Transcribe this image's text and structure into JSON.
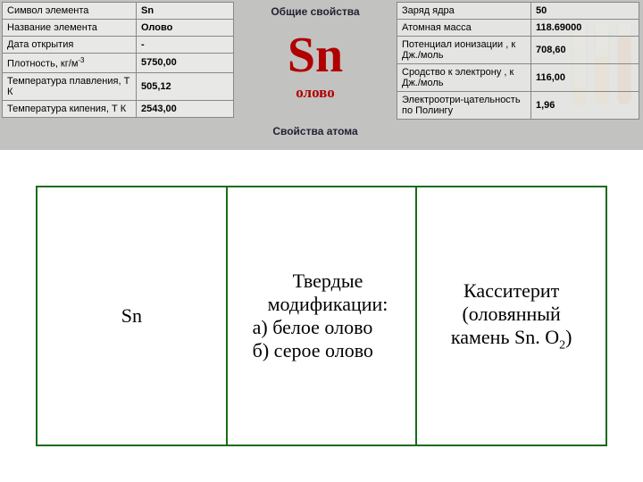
{
  "top": {
    "left_rows": [
      {
        "label": "Символ элемента",
        "value": "Sn"
      },
      {
        "label": "Название элемента",
        "value": "Олово"
      },
      {
        "label": "Дата открытия",
        "value": "-"
      },
      {
        "label": "Плотность, кг/м",
        "label_sup": "-3",
        "value": "5750,00"
      },
      {
        "label": "Температура плавления, Т К",
        "value": "505,12"
      },
      {
        "label": "Температура кипения, Т К",
        "value": "2543,00"
      }
    ],
    "center": {
      "header1": "Общие свойства",
      "symbol": "Sn",
      "name": "олово",
      "header2": "Свойства атома",
      "symbol_color": "#b00000"
    },
    "right_rows": [
      {
        "label": "Заряд ядра",
        "value": "50"
      },
      {
        "label": "Атомная масса",
        "value": "118.69000"
      },
      {
        "label": "Потенциал ионизации , к Дж./моль",
        "value": "708,60"
      },
      {
        "label": "Сродство к электрону , к Дж./моль",
        "value": "116,00"
      },
      {
        "label": "Электроотри-цательность по Полингу",
        "value": "1,96"
      }
    ]
  },
  "bottom": {
    "border_color": "#1a6b1a",
    "cells": [
      {
        "text": "Sn"
      },
      {
        "line1": "Твердые",
        "line2": "модификации:",
        "line3": "а) белое олово",
        "line4": "б) серое олово"
      },
      {
        "line1": "Касситерит",
        "line2": "(оловянный",
        "line3_pre": "камень Sn. O",
        "line3_sub": "2",
        "line3_post": ")"
      }
    ]
  },
  "colors": {
    "panel_bg": "#c2c2c0",
    "cell_bg": "#e8e8e6",
    "border": "#888888"
  }
}
